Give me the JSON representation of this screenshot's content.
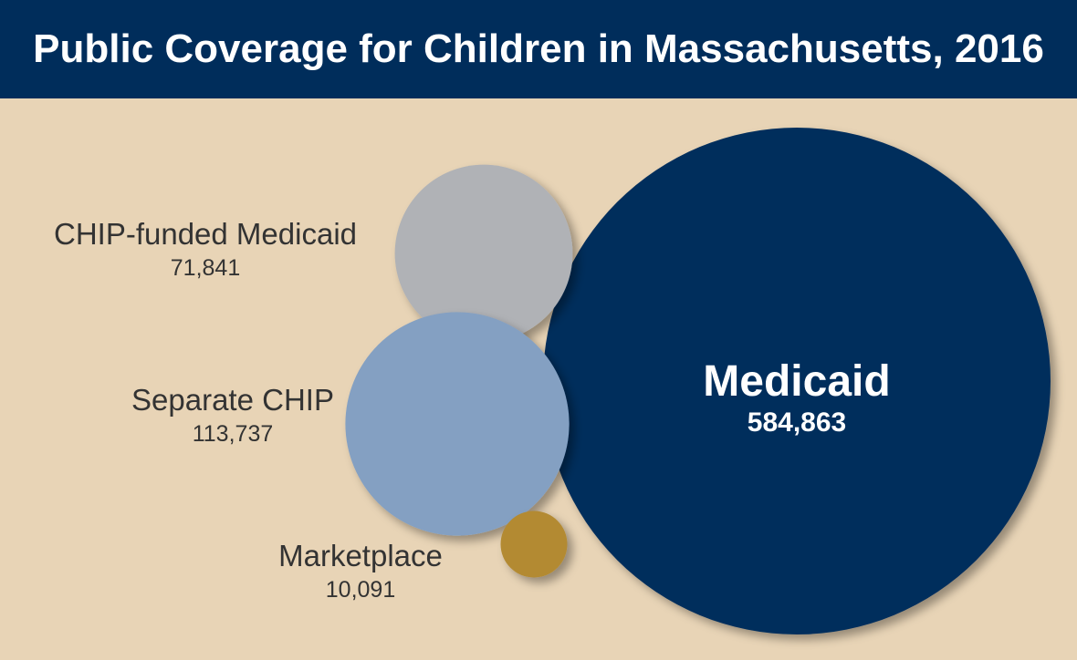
{
  "header": {
    "title": "Public Coverage for Children in Massachusetts, 2016"
  },
  "chart_data": {
    "type": "bubble",
    "title": "Public Coverage for Children in Massachusetts, 2016",
    "series": [
      {
        "name": "Medicaid",
        "value": 584863,
        "value_label": "584,863",
        "color": "#002d5b"
      },
      {
        "name": "CHIP-funded Medicaid",
        "value": 71841,
        "value_label": "71,841",
        "color": "#b0b2b6"
      },
      {
        "name": "Separate CHIP",
        "value": 113737,
        "value_label": "113,737",
        "color": "#84a0c2"
      },
      {
        "name": "Marketplace",
        "value": 10091,
        "value_label": "10,091",
        "color": "#b38a33"
      }
    ]
  }
}
